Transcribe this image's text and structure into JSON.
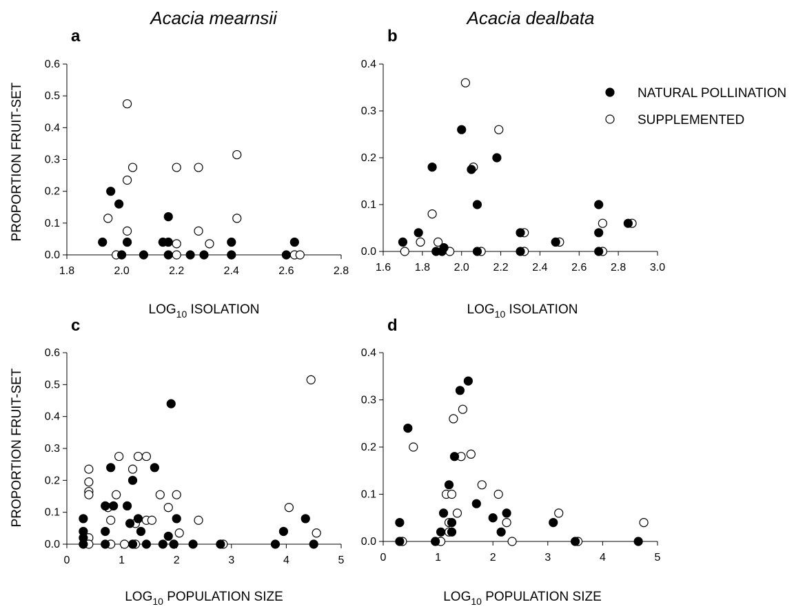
{
  "species": {
    "left": "Acacia mearnsii",
    "right": "Acacia dealbata"
  },
  "legend": {
    "natural": "NATURAL POLLINATION",
    "supplemented": "SUPPLEMENTED"
  },
  "axis_labels": {
    "ylabel": "PROPORTION FRUIT-SET",
    "isolation": "LOG10 ISOLATION",
    "population": "LOG10 POPULATION SIZE"
  },
  "chart_data": [
    {
      "type": "scatter",
      "panel": "a",
      "title": "Acacia mearnsii",
      "xlabel": "LOG10 ISOLATION",
      "ylabel": "PROPORTION FRUIT-SET",
      "xlim": [
        1.8,
        2.8
      ],
      "ylim": [
        0,
        0.6
      ],
      "xticks": [
        "1.8",
        "2.0",
        "2.2",
        "2.4",
        "2.6",
        "2.8"
      ],
      "yticks": [
        "0.0",
        "0.1",
        "0.2",
        "0.3",
        "0.4",
        "0.5",
        "0.6"
      ],
      "series": [
        {
          "name": "NATURAL POLLINATION",
          "marker": "filled",
          "points": [
            [
              1.93,
              0.04
            ],
            [
              1.96,
              0.2
            ],
            [
              1.99,
              0.16
            ],
            [
              2.0,
              0.0
            ],
            [
              2.02,
              0.04
            ],
            [
              2.08,
              0.0
            ],
            [
              2.15,
              0.04
            ],
            [
              2.17,
              0.12
            ],
            [
              2.17,
              0.04
            ],
            [
              2.17,
              0.0
            ],
            [
              2.25,
              0.0
            ],
            [
              2.3,
              0.0
            ],
            [
              2.4,
              0.04
            ],
            [
              2.4,
              0.0
            ],
            [
              2.6,
              0.0
            ],
            [
              2.63,
              0.04
            ]
          ]
        },
        {
          "name": "SUPPLEMENTED",
          "marker": "open",
          "points": [
            [
              1.98,
              0.0
            ],
            [
              1.95,
              0.115
            ],
            [
              2.02,
              0.475
            ],
            [
              2.02,
              0.235
            ],
            [
              2.04,
              0.275
            ],
            [
              2.02,
              0.075
            ],
            [
              2.2,
              0.275
            ],
            [
              2.2,
              0.035
            ],
            [
              2.2,
              0.0
            ],
            [
              2.28,
              0.275
            ],
            [
              2.28,
              0.075
            ],
            [
              2.32,
              0.035
            ],
            [
              2.42,
              0.315
            ],
            [
              2.42,
              0.115
            ],
            [
              2.63,
              0.0
            ],
            [
              2.65,
              0.0
            ]
          ]
        }
      ]
    },
    {
      "type": "scatter",
      "panel": "b",
      "title": "Acacia dealbata",
      "xlabel": "LOG10 ISOLATION",
      "ylabel": "",
      "xlim": [
        1.6,
        3.0
      ],
      "ylim": [
        0,
        0.4
      ],
      "xticks": [
        "1.6",
        "1.8",
        "2.0",
        "2.2",
        "2.4",
        "2.6",
        "2.8",
        "3.0"
      ],
      "yticks": [
        "0.0",
        "0.1",
        "0.2",
        "0.3",
        "0.4"
      ],
      "series": [
        {
          "name": "NATURAL POLLINATION",
          "marker": "filled",
          "points": [
            [
              1.7,
              0.02
            ],
            [
              1.78,
              0.04
            ],
            [
              1.85,
              0.18
            ],
            [
              1.87,
              0.0
            ],
            [
              1.9,
              0.0
            ],
            [
              1.91,
              0.008
            ],
            [
              2.0,
              0.26
            ],
            [
              2.05,
              0.175
            ],
            [
              2.08,
              0.1
            ],
            [
              2.08,
              0.0
            ],
            [
              2.18,
              0.2
            ],
            [
              2.3,
              0.04
            ],
            [
              2.3,
              0.0
            ],
            [
              2.48,
              0.02
            ],
            [
              2.7,
              0.1
            ],
            [
              2.7,
              0.04
            ],
            [
              2.7,
              0.0
            ],
            [
              2.85,
              0.06
            ]
          ]
        },
        {
          "name": "SUPPLEMENTED",
          "marker": "open",
          "points": [
            [
              1.71,
              0.0
            ],
            [
              1.79,
              0.02
            ],
            [
              1.85,
              0.08
            ],
            [
              1.88,
              0.02
            ],
            [
              1.94,
              0.0
            ],
            [
              2.02,
              0.36
            ],
            [
              2.06,
              0.18
            ],
            [
              2.1,
              0.0
            ],
            [
              2.19,
              0.26
            ],
            [
              2.32,
              0.04
            ],
            [
              2.32,
              0.0
            ],
            [
              2.5,
              0.02
            ],
            [
              2.72,
              0.06
            ],
            [
              2.72,
              0.0
            ],
            [
              2.87,
              0.06
            ]
          ]
        }
      ]
    },
    {
      "type": "scatter",
      "panel": "c",
      "title": "",
      "xlabel": "LOG10 POPULATION SIZE",
      "ylabel": "PROPORTION FRUIT-SET",
      "xlim": [
        0,
        5
      ],
      "ylim": [
        0,
        0.6
      ],
      "xticks": [
        "0",
        "1",
        "2",
        "3",
        "4",
        "5"
      ],
      "yticks": [
        "0.0",
        "0.1",
        "0.2",
        "0.3",
        "0.4",
        "0.5",
        "0.6"
      ],
      "series": [
        {
          "name": "NATURAL POLLINATION",
          "marker": "filled",
          "points": [
            [
              0.3,
              0.08
            ],
            [
              0.3,
              0.04
            ],
            [
              0.3,
              0.02
            ],
            [
              0.3,
              0.0
            ],
            [
              0.7,
              0.12
            ],
            [
              0.7,
              0.04
            ],
            [
              0.7,
              0.0
            ],
            [
              0.8,
              0.24
            ],
            [
              0.85,
              0.12
            ],
            [
              1.1,
              0.12
            ],
            [
              1.2,
              0.2
            ],
            [
              1.15,
              0.065
            ],
            [
              1.2,
              0.0
            ],
            [
              1.3,
              0.08
            ],
            [
              1.35,
              0.04
            ],
            [
              1.45,
              0.0
            ],
            [
              1.6,
              0.24
            ],
            [
              1.75,
              0.0
            ],
            [
              1.85,
              0.025
            ],
            [
              1.9,
              0.44
            ],
            [
              1.95,
              0.0
            ],
            [
              2.0,
              0.08
            ],
            [
              2.3,
              0.0
            ],
            [
              2.8,
              0.0
            ],
            [
              3.8,
              0.0
            ],
            [
              3.95,
              0.04
            ],
            [
              4.35,
              0.08
            ],
            [
              4.5,
              0.0
            ]
          ]
        },
        {
          "name": "SUPPLEMENTED",
          "marker": "open",
          "points": [
            [
              0.4,
              0.235
            ],
            [
              0.4,
              0.195
            ],
            [
              0.4,
              0.165
            ],
            [
              0.4,
              0.155
            ],
            [
              0.4,
              0.02
            ],
            [
              0.4,
              0.0
            ],
            [
              0.75,
              0.115
            ],
            [
              0.8,
              0.075
            ],
            [
              0.8,
              0.0
            ],
            [
              0.9,
              0.155
            ],
            [
              0.95,
              0.275
            ],
            [
              1.05,
              0.0
            ],
            [
              1.2,
              0.235
            ],
            [
              1.25,
              0.065
            ],
            [
              1.25,
              0.0
            ],
            [
              1.3,
              0.275
            ],
            [
              1.45,
              0.275
            ],
            [
              1.45,
              0.075
            ],
            [
              1.55,
              0.075
            ],
            [
              1.7,
              0.155
            ],
            [
              1.85,
              0.115
            ],
            [
              1.95,
              0.0
            ],
            [
              2.0,
              0.155
            ],
            [
              2.05,
              0.035
            ],
            [
              2.4,
              0.075
            ],
            [
              2.85,
              0.0
            ],
            [
              4.05,
              0.115
            ],
            [
              4.45,
              0.515
            ],
            [
              4.55,
              0.035
            ]
          ]
        }
      ]
    },
    {
      "type": "scatter",
      "panel": "d",
      "title": "",
      "xlabel": "LOG10 POPULATION SIZE",
      "ylabel": "",
      "xlim": [
        0,
        5
      ],
      "ylim": [
        0,
        0.4
      ],
      "xticks": [
        "0",
        "1",
        "2",
        "3",
        "4",
        "5"
      ],
      "yticks": [
        "0.0",
        "0.1",
        "0.2",
        "0.3",
        "0.4"
      ],
      "series": [
        {
          "name": "NATURAL POLLINATION",
          "marker": "filled",
          "points": [
            [
              0.3,
              0.04
            ],
            [
              0.3,
              0.0
            ],
            [
              0.45,
              0.24
            ],
            [
              0.95,
              0.0
            ],
            [
              1.05,
              0.02
            ],
            [
              1.1,
              0.06
            ],
            [
              1.2,
              0.12
            ],
            [
              1.25,
              0.04
            ],
            [
              1.25,
              0.02
            ],
            [
              1.3,
              0.18
            ],
            [
              1.4,
              0.32
            ],
            [
              1.55,
              0.34
            ],
            [
              1.7,
              0.08
            ],
            [
              2.0,
              0.05
            ],
            [
              2.15,
              0.02
            ],
            [
              2.25,
              0.06
            ],
            [
              3.1,
              0.04
            ],
            [
              3.5,
              0.0
            ],
            [
              4.65,
              0.0
            ]
          ]
        },
        {
          "name": "SUPPLEMENTED",
          "marker": "open",
          "points": [
            [
              0.35,
              0.0
            ],
            [
              0.55,
              0.2
            ],
            [
              1.05,
              0.0
            ],
            [
              1.15,
              0.1
            ],
            [
              1.2,
              0.04
            ],
            [
              1.2,
              0.02
            ],
            [
              1.25,
              0.1
            ],
            [
              1.28,
              0.26
            ],
            [
              1.35,
              0.06
            ],
            [
              1.42,
              0.18
            ],
            [
              1.45,
              0.28
            ],
            [
              1.6,
              0.185
            ],
            [
              1.8,
              0.12
            ],
            [
              2.1,
              0.1
            ],
            [
              2.25,
              0.04
            ],
            [
              2.35,
              0.0
            ],
            [
              3.2,
              0.06
            ],
            [
              3.55,
              0.0
            ],
            [
              4.75,
              0.04
            ]
          ]
        }
      ]
    }
  ]
}
